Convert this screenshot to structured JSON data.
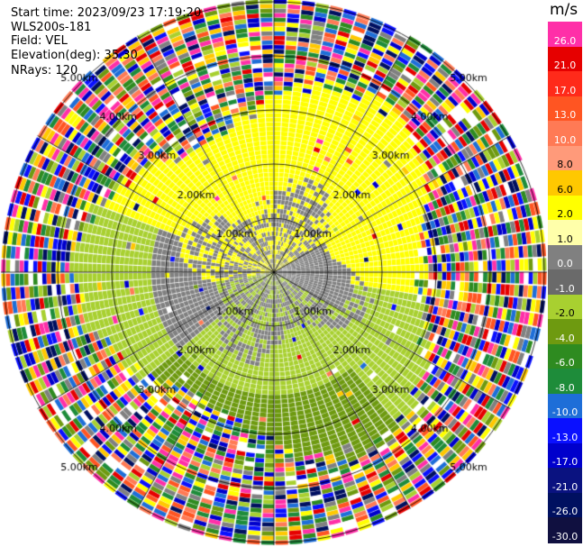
{
  "header": {
    "start_time": "Start time: 2023/09/23 17:19:20",
    "instrument": "WLS200s-181",
    "field": "Field: VEL",
    "elevation": "Elevation(deg): 35.30",
    "nrays": "NRays: 120"
  },
  "colorbar": {
    "unit": "m/s",
    "labels": [
      "26.0",
      "21.0",
      "17.0",
      "13.0",
      "10.0",
      "8.0",
      "6.0",
      "2.0",
      "1.0",
      "0.0",
      "-1.0",
      "-2.0",
      "-4.0",
      "-6.0",
      "-8.0",
      "-10.0",
      "-13.0",
      "-17.0",
      "-21.0",
      "-26.0",
      "-30.0"
    ],
    "colors": [
      "#ff2fa8",
      "#e60000",
      "#ff2a1a",
      "#ff5522",
      "#ff7a55",
      "#ff9a7a",
      "#ffc800",
      "#ffff00",
      "#ffffaa",
      "#808080",
      "#6a6a6a",
      "#a8d030",
      "#6e9a10",
      "#2e8b20",
      "#1e8c3a",
      "#1e6ed8",
      "#0a10ff",
      "#0000cc",
      "#0a1280",
      "#001060",
      "#101040"
    ]
  },
  "radar": {
    "range_labels": [
      "1.00km",
      "2.00km",
      "3.00km",
      "4.00km",
      "5.00km"
    ],
    "n_rays": 120
  }
}
